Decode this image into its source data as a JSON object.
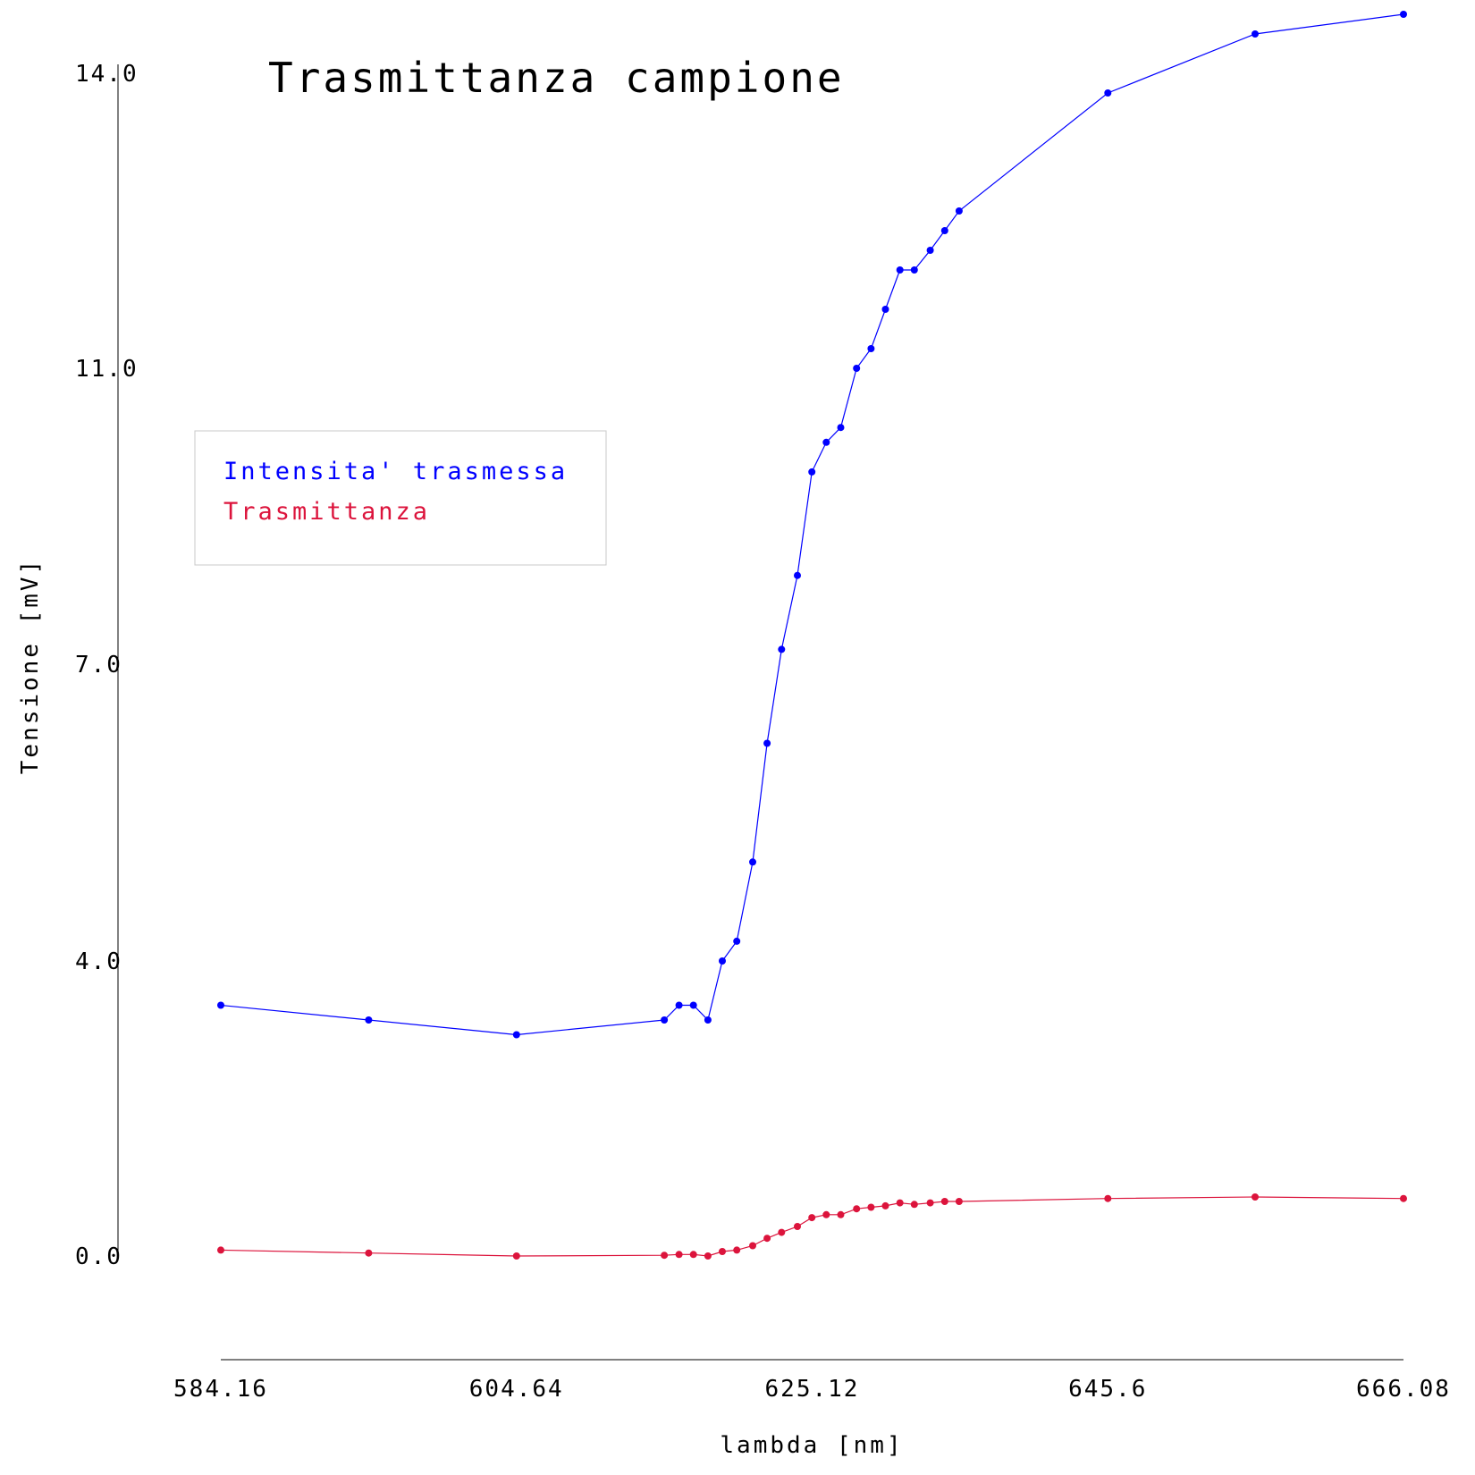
{
  "chart_data": {
    "type": "line",
    "title": "Trasmittanza campione",
    "xlabel": "lambda [nm]",
    "ylabel": "Tensione [mV]",
    "xlim": [
      584.16,
      666.08
    ],
    "ylim": [
      -1.2,
      14.0
    ],
    "x_ticks": [
      "584.16",
      "604.64",
      "625.12",
      "645.6",
      "666.08"
    ],
    "y_ticks": [
      "0.0",
      "4.0",
      "7.0",
      "11.0",
      "14.0"
    ],
    "y_tick_values": [
      0.0,
      4.0,
      7.0,
      11.0,
      14.0
    ],
    "grid": false,
    "legend_position": "upper-left",
    "series": [
      {
        "name": "Intensita' trasmessa",
        "color": "#0000ff",
        "x": [
          584.16,
          594.4,
          604.64,
          614.88,
          615.9,
          616.9,
          617.9,
          618.9,
          619.9,
          621.0,
          622.0,
          623.0,
          624.1,
          625.1,
          626.1,
          627.1,
          628.2,
          629.2,
          630.2,
          631.2,
          632.2,
          633.3,
          634.3,
          635.3,
          645.6,
          655.8,
          666.08
        ],
        "y": [
          3.4,
          3.2,
          3.0,
          3.2,
          3.4,
          3.4,
          3.2,
          4.0,
          4.2,
          5.0,
          6.2,
          7.2,
          8.2,
          9.6,
          10.0,
          10.2,
          11.0,
          11.2,
          11.6,
          12.0,
          12.0,
          12.2,
          12.4,
          12.6,
          13.8,
          14.4,
          14.6
        ]
      },
      {
        "name": "Trasmittanza",
        "color": "#dc143c",
        "x": [
          584.16,
          594.4,
          604.64,
          614.88,
          615.9,
          616.9,
          617.9,
          618.9,
          619.9,
          621.0,
          622.0,
          623.0,
          624.1,
          625.1,
          626.1,
          627.1,
          628.2,
          629.2,
          630.2,
          631.2,
          632.2,
          633.3,
          634.3,
          635.3,
          645.6,
          655.8,
          666.08
        ],
        "y": [
          0.08,
          0.04,
          0.0,
          0.01,
          0.02,
          0.02,
          0.0,
          0.06,
          0.08,
          0.14,
          0.24,
          0.32,
          0.4,
          0.52,
          0.56,
          0.56,
          0.64,
          0.66,
          0.68,
          0.72,
          0.7,
          0.72,
          0.74,
          0.74,
          0.78,
          0.8,
          0.78
        ]
      }
    ]
  }
}
